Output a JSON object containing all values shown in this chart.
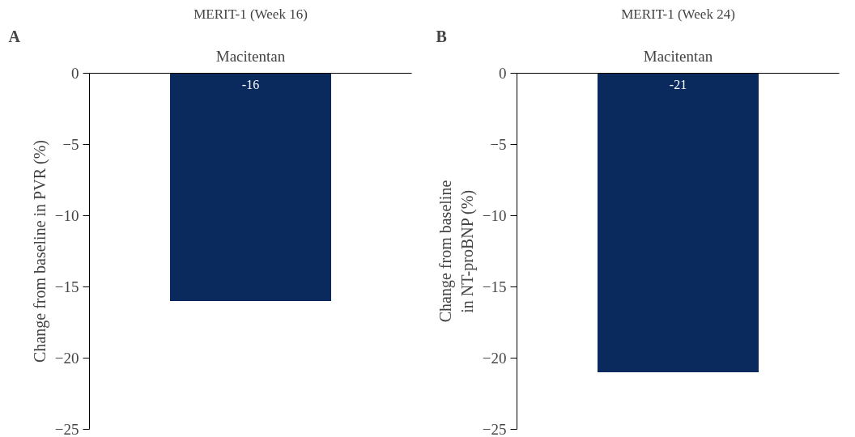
{
  "chart_data": [
    {
      "type": "bar",
      "title": "MERIT-1 (Week 16)",
      "annotations": [
        "A"
      ],
      "categories": [
        "Macitentan"
      ],
      "values": [
        -16
      ],
      "color": "#0a2a5e",
      "ylabel": "Change from baseline in PVR (%)",
      "ylim": [
        -25,
        0
      ],
      "yticks": [
        {
          "value": -25,
          "label": "−25"
        },
        {
          "value": -20,
          "label": "−20"
        },
        {
          "value": -15,
          "label": "−15"
        },
        {
          "value": -10,
          "label": "−10"
        },
        {
          "value": -5,
          "label": "−5"
        },
        0
      ],
      "data_labels": true
    },
    {
      "type": "bar",
      "title": "MERIT-1 (Week 24)",
      "annotations": [
        "B"
      ],
      "categories": [
        "Macitentan"
      ],
      "values": [
        -21
      ],
      "color": "#0a2a5e",
      "ylabel": "Change from baseline\nin NT-proBNP (%)",
      "ylim": [
        -25,
        0
      ],
      "yticks": [
        {
          "value": -25,
          "label": "−25"
        },
        {
          "value": -20,
          "label": "−20"
        },
        {
          "value": -15,
          "label": "−15"
        },
        {
          "value": -10,
          "label": "−10"
        },
        {
          "value": -5,
          "label": "−5"
        },
        0
      ],
      "data_labels": true
    }
  ]
}
